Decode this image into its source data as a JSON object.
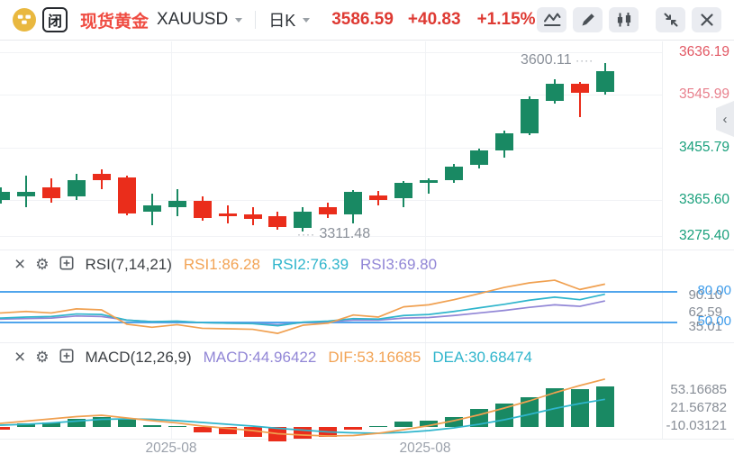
{
  "toolbar": {
    "logo_box_char": "闭",
    "instrument_cn": "现货黄金",
    "symbol": "XAUUSD",
    "timeframe": "日K",
    "price": "3586.59",
    "change": "+40.83",
    "change_pct": "+1.15%"
  },
  "palette": {
    "up": "#198963",
    "down": "#ea2d1b",
    "orange": "#f0a050",
    "cyan": "#2fb5cc",
    "purple": "#9186d6",
    "blue": "#3d9bea",
    "axis_red": "#e25864",
    "axis_red_light": "#e8808d",
    "axis_green": "#1aa07c"
  },
  "main_chart": {
    "high_annotation": {
      "text": "3600.11",
      "dots": "····"
    },
    "low_annotation": {
      "text": "3311.48",
      "dots": "····"
    }
  },
  "rsi": {
    "title": "RSI(7,14,21)",
    "readouts": [
      {
        "text": "RSI1:86.28",
        "color": "#f2a354"
      },
      {
        "text": "RSI2:76.39",
        "color": "#2fb5cc"
      },
      {
        "text": "RSI3:69.80",
        "color": "#9186d6"
      }
    ],
    "ref_labels": [
      "80.00",
      "50.00"
    ],
    "scale_labels": [
      "90.10",
      "62.59",
      "35.01"
    ]
  },
  "macd": {
    "title": "MACD(12,26,9)",
    "readouts": [
      {
        "text": "MACD:44.96422",
        "color": "#9186d6"
      },
      {
        "text": "DIF:53.16685",
        "color": "#f2a354"
      },
      {
        "text": "DEA:30.68474",
        "color": "#2fb5cc"
      }
    ],
    "scale_labels": [
      "53.16685",
      "21.56782",
      "-10.03121"
    ]
  },
  "chart_data": {
    "type": "candlestick",
    "symbol": "XAUUSD",
    "period": "日K",
    "y_axis": {
      "ticks": [
        "3636.19",
        "3545.99",
        "3455.79",
        "3365.60",
        "3275.40"
      ],
      "tick_colors": [
        "#e25864",
        "#e8808d",
        "#1aa07c",
        "#1aa07c",
        "#1aa07c"
      ]
    },
    "x_axis": {
      "labels": [
        "2025-08",
        "2025-08"
      ]
    },
    "annotations": {
      "visible_high": 3600.11,
      "visible_low": 3311.48,
      "last_price": 3586.59
    },
    "candles": [
      [
        3365.5,
        3387.1,
        3359.3,
        3379.4
      ],
      [
        3371.7,
        3407.2,
        3353.2,
        3379.4
      ],
      [
        3387.1,
        3402.5,
        3360.9,
        3368.6
      ],
      [
        3371.7,
        3410.3,
        3365.5,
        3399.4
      ],
      [
        3410.3,
        3418.0,
        3384.0,
        3399.4
      ],
      [
        3404.1,
        3407.2,
        3339.3,
        3342.4
      ],
      [
        3345.4,
        3376.3,
        3322.3,
        3356.3
      ],
      [
        3353.2,
        3384.0,
        3337.7,
        3364.0
      ],
      [
        3364.0,
        3371.7,
        3330.0,
        3334.7
      ],
      [
        3342.4,
        3356.3,
        3325.4,
        3337.7
      ],
      [
        3340.8,
        3353.2,
        3322.3,
        3333.1
      ],
      [
        3337.7,
        3345.4,
        3314.6,
        3319.2
      ],
      [
        3317.6,
        3353.2,
        3311.48,
        3345.4
      ],
      [
        3353.2,
        3360.9,
        3334.7,
        3340.8
      ],
      [
        3340.8,
        3382.5,
        3325.4,
        3379.4
      ],
      [
        3373.2,
        3381.0,
        3356.3,
        3365.5
      ],
      [
        3368.6,
        3397.9,
        3353.2,
        3394.8
      ],
      [
        3394.8,
        3402.5,
        3376.3,
        3399.4
      ],
      [
        3399.4,
        3427.2,
        3394.8,
        3422.6
      ],
      [
        3425.7,
        3453.5,
        3419.5,
        3450.4
      ],
      [
        3450.4,
        3484.3,
        3438.0,
        3479.7
      ],
      [
        3479.7,
        3543.0,
        3476.6,
        3538.4
      ],
      [
        3535.3,
        3572.3,
        3530.7,
        3564.6
      ],
      [
        3564.6,
        3567.7,
        3507.5,
        3549.2
      ],
      [
        3550.7,
        3600.11,
        3546.1,
        3586.59
      ]
    ],
    "indicators": {
      "rsi": {
        "params": [
          7,
          14,
          21
        ],
        "ref_lines": [
          80,
          50
        ],
        "series": [
          {
            "name": "RSI1",
            "values": [
              58,
              59.5,
              58,
              62,
              61,
              47,
              44,
              46.5,
              43,
              42.5,
              42,
              38,
              46,
              48,
              56,
              54,
              64,
              66,
              71,
              77,
              83,
              87.5,
              90.1,
              81,
              86.28
            ]
          },
          {
            "name": "RSI2",
            "values": [
              53,
              54,
              54.5,
              57,
              56.5,
              51,
              49.5,
              50,
              48.5,
              48,
              47.5,
              45.5,
              49,
              50,
              52.5,
              52,
              55.5,
              56.5,
              59.5,
              63,
              66.5,
              70.5,
              73.5,
              71,
              76.39
            ]
          },
          {
            "name": "RSI3",
            "values": [
              52,
              52.5,
              53,
              55,
              54.5,
              51,
              49.5,
              49.8,
              48.5,
              48,
              47.8,
              46.5,
              48.5,
              49.5,
              51,
              51,
              53,
              53.5,
              55.5,
              58,
              60.5,
              63.5,
              66,
              64.5,
              69.8
            ]
          }
        ]
      },
      "macd": {
        "params": [
          12,
          26,
          9
        ],
        "dif": [
          4,
          6.5,
          9,
          11.5,
          13,
          10,
          7,
          4.5,
          1,
          -1.5,
          -4,
          -7.5,
          -9,
          -10,
          -9.5,
          -7,
          -3,
          1.5,
          7,
          13.5,
          21,
          29,
          38,
          46,
          53.17
        ],
        "dea": [
          2,
          3,
          4.5,
          6.5,
          8.5,
          9,
          8.5,
          7,
          5,
          3,
          1,
          -1.5,
          -3.5,
          -5.5,
          -6.5,
          -7,
          -6,
          -4,
          -1,
          3,
          8,
          14,
          20.5,
          26,
          30.68
        ],
        "histogram": [
          -3,
          4,
          5,
          9,
          11.5,
          8,
          2,
          0.5,
          -5.5,
          -7.5,
          -10.5,
          -15.5,
          -12.5,
          -11,
          -3,
          1.5,
          6,
          7,
          11.5,
          20,
          26,
          33.5,
          43,
          42,
          44.96
        ]
      }
    }
  }
}
